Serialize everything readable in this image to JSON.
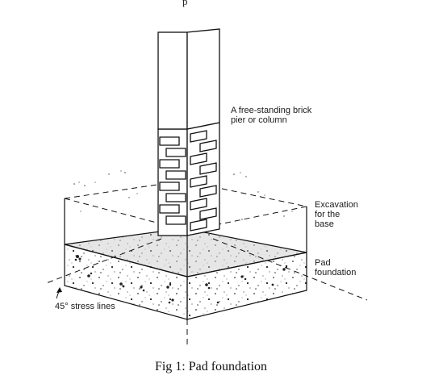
{
  "header_fragment": "p",
  "labels": {
    "pier_line1": "A free-standing brick",
    "pier_line2": "pier or column",
    "excavation_line1": "Excavation",
    "excavation_line2": "for the",
    "excavation_line3": "base",
    "pad_line1": "Pad",
    "pad_line2": "foundation",
    "stress": "45° stress lines"
  },
  "caption": "Fig 1: Pad foundation"
}
